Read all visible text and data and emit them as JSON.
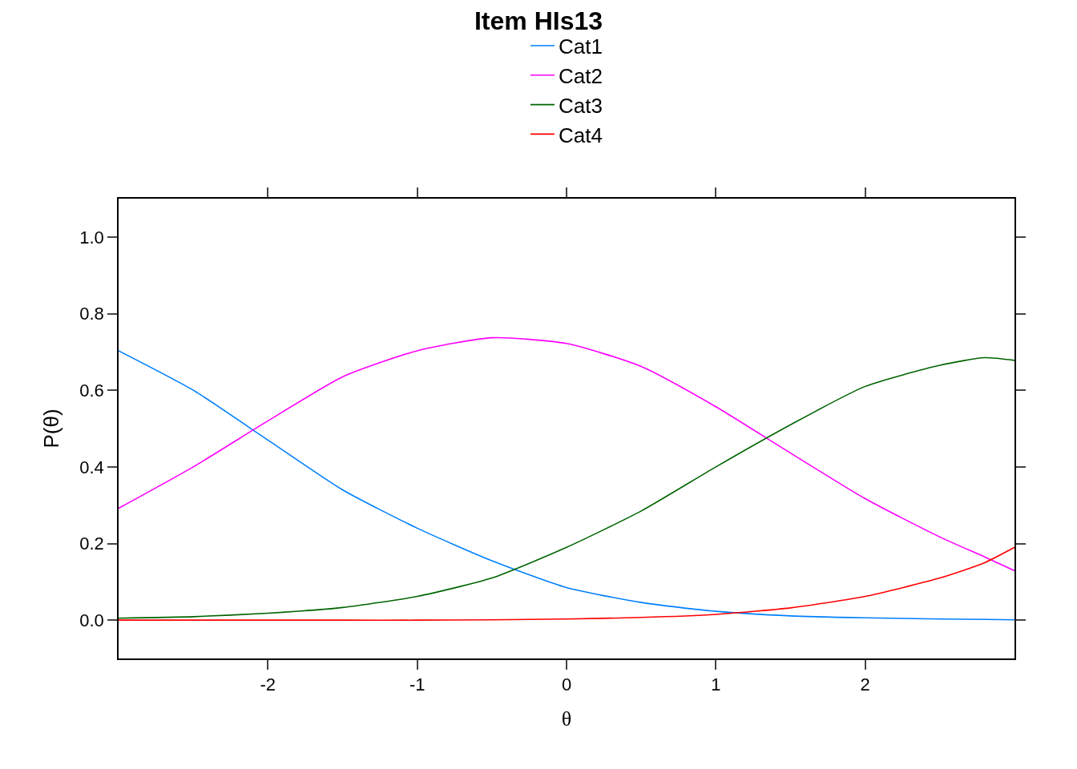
{
  "chart_data": {
    "type": "line",
    "title": "Item HIs13",
    "xlabel": "θ",
    "ylabel": "P(θ)",
    "x": [
      -3,
      -2.5,
      -2,
      -1.5,
      -1,
      -0.5,
      0,
      0.5,
      1,
      1.5,
      2,
      2.5,
      2.8,
      3
    ],
    "series": [
      {
        "name": "Cat1",
        "color": "#0080ff",
        "values": [
          0.703,
          0.6,
          0.47,
          0.34,
          0.24,
          0.155,
          0.085,
          0.046,
          0.023,
          0.011,
          0.006,
          0.003,
          0.002,
          0.001
        ]
      },
      {
        "name": "Cat2",
        "color": "#ff00ff",
        "values": [
          0.292,
          0.4,
          0.52,
          0.635,
          0.703,
          0.737,
          0.722,
          0.662,
          0.557,
          0.436,
          0.317,
          0.217,
          0.165,
          0.129
        ]
      },
      {
        "name": "Cat3",
        "color": "#006400",
        "values": [
          0.005,
          0.009,
          0.018,
          0.033,
          0.062,
          0.11,
          0.19,
          0.285,
          0.4,
          0.51,
          0.61,
          0.665,
          0.685,
          0.678
        ]
      },
      {
        "name": "Cat4",
        "color": "#ff0000",
        "values": [
          0,
          0,
          0,
          0,
          0,
          0.001,
          0.003,
          0.007,
          0.015,
          0.032,
          0.062,
          0.11,
          0.15,
          0.19
        ]
      }
    ],
    "xlim": [
      -3,
      3
    ],
    "xticks": [
      -2,
      -1,
      0,
      1,
      2
    ],
    "ylim": [
      -0.1,
      1.1
    ],
    "yticks": [
      {
        "value": 0,
        "label": "0.0"
      },
      0.2,
      0.4,
      0.6,
      0.8,
      {
        "value": 1,
        "label": "1.0"
      }
    ],
    "grid": false,
    "legend": "top",
    "marker": "none",
    "line_style": "solid"
  }
}
